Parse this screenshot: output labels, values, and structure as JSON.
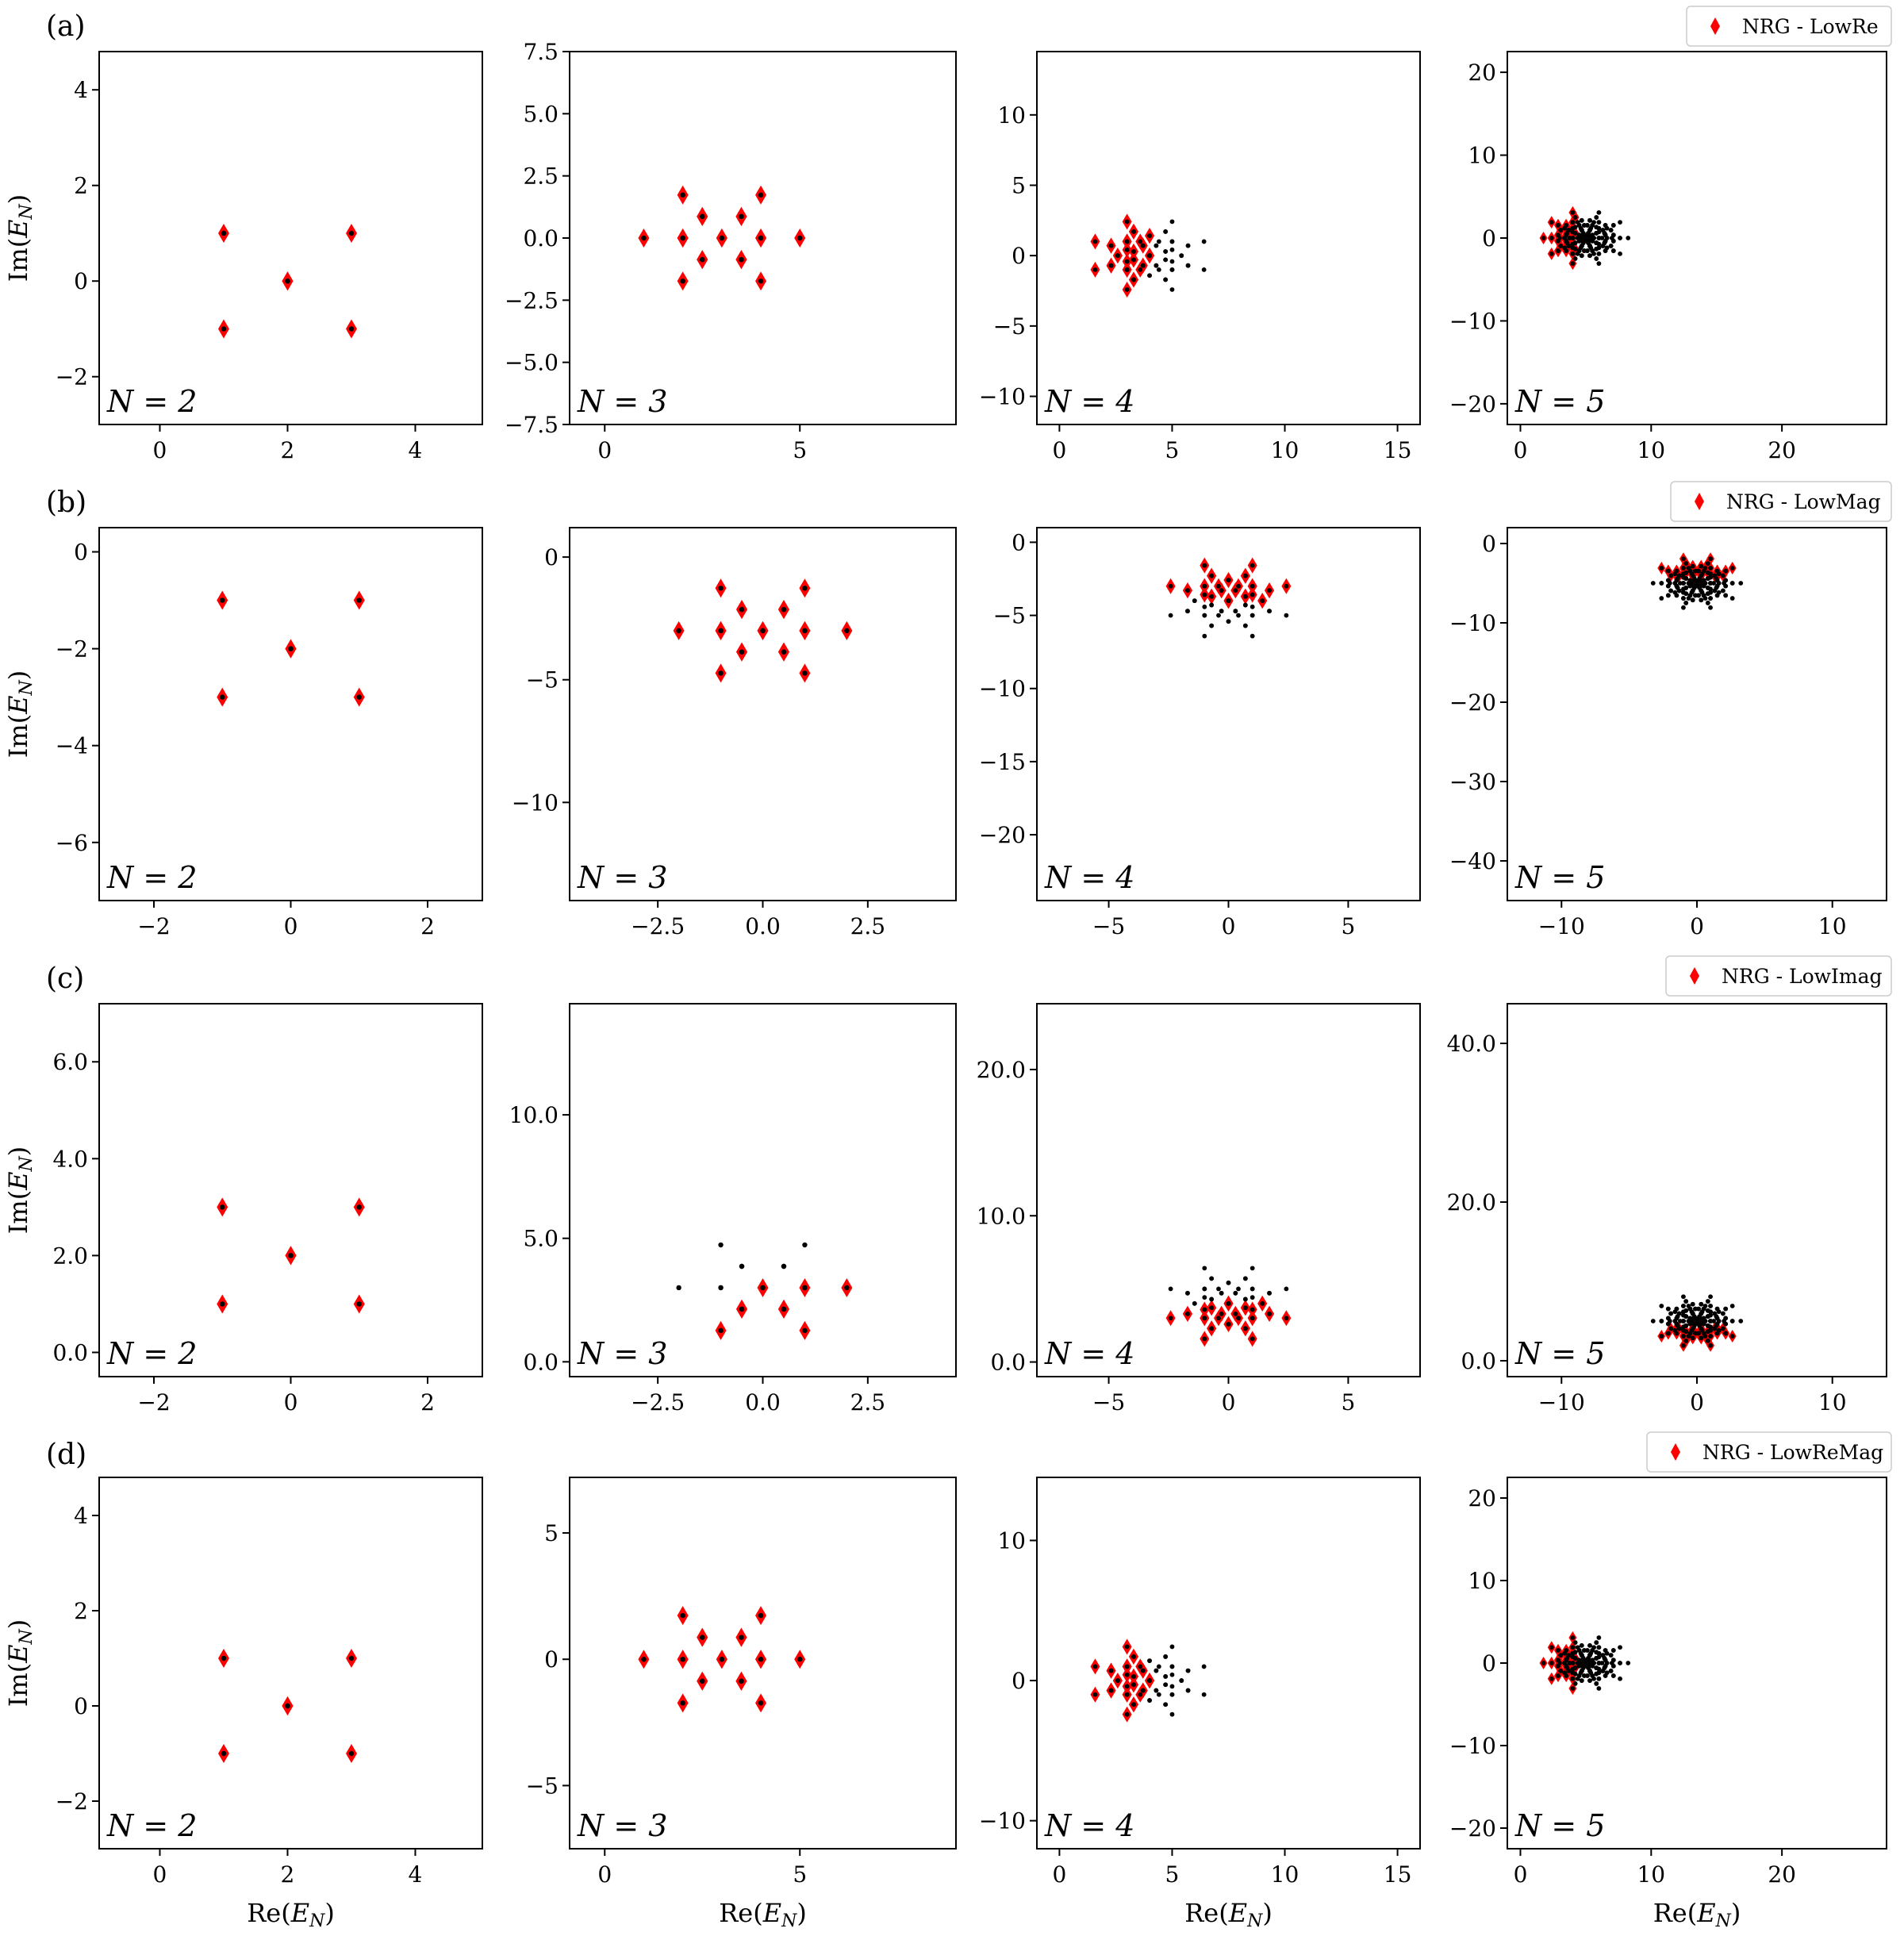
{
  "chart_data": [
    {
      "row": "(a)",
      "legend": "NRG - LowRe",
      "type": "scatter",
      "xlabel": "Re(E_N)",
      "ylabel": "Im(E_N)",
      "panels": [
        {
          "n_label": "N = 2",
          "N": 2,
          "xlim": [
            -0.95,
            5.05
          ],
          "ylim": [
            -3.0,
            4.8
          ],
          "xticks": [
            0,
            2,
            4
          ],
          "yticks": [
            -2,
            0,
            2,
            4
          ],
          "ytick_labels": [
            "−2",
            "0",
            "2",
            "4"
          ]
        },
        {
          "n_label": "N = 3",
          "N": 3,
          "xlim": [
            -0.9,
            9.0
          ],
          "ylim": [
            -7.5,
            7.5
          ],
          "xticks": [
            0,
            5
          ],
          "yticks": [
            -7.5,
            -5.0,
            -2.5,
            0.0,
            2.5,
            5.0,
            7.5
          ],
          "ytick_labels": [
            "−7.5",
            "−5.0",
            "−2.5",
            "0.0",
            "2.5",
            "5.0",
            "7.5"
          ]
        },
        {
          "n_label": "N = 4",
          "N": 4,
          "xlim": [
            -1.0,
            16.0
          ],
          "ylim": [
            -12.0,
            14.5
          ],
          "xticks": [
            0,
            5,
            10,
            15
          ],
          "yticks": [
            -10,
            -5,
            0,
            5,
            10
          ],
          "ytick_labels": [
            "−10",
            "−5",
            "0",
            "5",
            "10"
          ]
        },
        {
          "n_label": "N = 5",
          "N": 5,
          "xlim": [
            -1.0,
            28.0
          ],
          "ylim": [
            -22.5,
            22.5
          ],
          "xticks": [
            0,
            10,
            20
          ],
          "yticks": [
            -20,
            -10,
            0,
            10,
            20
          ],
          "ytick_labels": [
            "−20",
            "−10",
            "0",
            "10",
            "20"
          ]
        }
      ]
    },
    {
      "row": "(b)",
      "legend": "NRG - LowMag",
      "type": "scatter",
      "xlabel": "Re(E_N)",
      "ylabel": "Im(E_N)",
      "panels": [
        {
          "n_label": "N = 2",
          "N": 2,
          "xlim": [
            -2.8,
            2.8
          ],
          "ylim": [
            -7.2,
            0.5
          ],
          "xticks": [
            -2,
            0,
            2
          ],
          "yticks": [
            -6,
            -4,
            -2,
            0
          ],
          "ytick_labels": [
            "−6",
            "−4",
            "−2",
            "0"
          ]
        },
        {
          "n_label": "N = 3",
          "N": 3,
          "xlim": [
            -4.6,
            4.6
          ],
          "ylim": [
            -14.0,
            1.2
          ],
          "xticks": [
            -2.5,
            0.0,
            2.5
          ],
          "xtick_labels": [
            "−2.5",
            "0.0",
            "2.5"
          ],
          "yticks": [
            -10,
            -5,
            0
          ],
          "ytick_labels": [
            "−10",
            "−5",
            "0"
          ]
        },
        {
          "n_label": "N = 4",
          "N": 4,
          "xlim": [
            -8.0,
            8.0
          ],
          "ylim": [
            -24.5,
            1.0
          ],
          "xticks": [
            -5,
            0,
            5
          ],
          "yticks": [
            -20,
            -15,
            -10,
            -5,
            0
          ],
          "ytick_labels": [
            "−20",
            "−15",
            "−10",
            "−5",
            "0"
          ]
        },
        {
          "n_label": "N = 5",
          "N": 5,
          "xlim": [
            -14.0,
            14.0
          ],
          "ylim": [
            -45.0,
            2.0
          ],
          "xticks": [
            -10,
            0,
            10
          ],
          "yticks": [
            -40,
            -30,
            -20,
            -10,
            0
          ],
          "ytick_labels": [
            "−40",
            "−30",
            "−20",
            "−10",
            "0"
          ]
        }
      ]
    },
    {
      "row": "(c)",
      "legend": "NRG - LowImag",
      "type": "scatter",
      "xlabel": "Re(E_N)",
      "ylabel": "Im(E_N)",
      "panels": [
        {
          "n_label": "N = 2",
          "N": 2,
          "xlim": [
            -2.8,
            2.8
          ],
          "ylim": [
            -0.5,
            7.2
          ],
          "xticks": [
            -2,
            0,
            2
          ],
          "yticks": [
            0,
            2,
            4,
            6
          ],
          "ytick_labels": [
            "0.0",
            "2.0",
            "4.0",
            "6.0"
          ]
        },
        {
          "n_label": "N = 3",
          "N": 3,
          "xlim": [
            -4.6,
            4.6
          ],
          "ylim": [
            -0.6,
            14.5
          ],
          "xticks": [
            -2.5,
            0.0,
            2.5
          ],
          "xtick_labels": [
            "−2.5",
            "0.0",
            "2.5"
          ],
          "yticks": [
            0,
            5,
            10
          ],
          "ytick_labels": [
            "0.0",
            "5.0",
            "10.0"
          ]
        },
        {
          "n_label": "N = 4",
          "N": 4,
          "xlim": [
            -8.0,
            8.0
          ],
          "ylim": [
            -1.0,
            24.5
          ],
          "xticks": [
            -5,
            0,
            5
          ],
          "yticks": [
            0,
            10,
            20
          ],
          "ytick_labels": [
            "0.0",
            "10.0",
            "20.0"
          ]
        },
        {
          "n_label": "N = 5",
          "N": 5,
          "xlim": [
            -14.0,
            14.0
          ],
          "ylim": [
            -2.0,
            45.0
          ],
          "xticks": [
            -10,
            0,
            10
          ],
          "yticks": [
            0,
            20,
            40
          ],
          "ytick_labels": [
            "0.0",
            "20.0",
            "40.0"
          ]
        }
      ]
    },
    {
      "row": "(d)",
      "legend": "NRG - LowReMag",
      "type": "scatter",
      "xlabel": "Re(E_N)",
      "ylabel": "Im(E_N)",
      "panels": [
        {
          "n_label": "N = 2",
          "N": 2,
          "xlim": [
            -0.95,
            5.05
          ],
          "ylim": [
            -3.0,
            4.8
          ],
          "xticks": [
            0,
            2,
            4
          ],
          "yticks": [
            -2,
            0,
            2,
            4
          ],
          "ytick_labels": [
            "−2",
            "0",
            "2",
            "4"
          ]
        },
        {
          "n_label": "N = 3",
          "N": 3,
          "xlim": [
            -0.9,
            9.0
          ],
          "ylim": [
            -7.5,
            7.2
          ],
          "xticks": [
            0,
            5
          ],
          "yticks": [
            -5,
            0,
            5
          ],
          "ytick_labels": [
            "−5",
            "0",
            "5"
          ]
        },
        {
          "n_label": "N = 4",
          "N": 4,
          "xlim": [
            -1.0,
            16.0
          ],
          "ylim": [
            -12.0,
            14.5
          ],
          "xticks": [
            0,
            5,
            10,
            15
          ],
          "yticks": [
            -10,
            0,
            10
          ],
          "ytick_labels": [
            "−10",
            "0",
            "10"
          ]
        },
        {
          "n_label": "N = 5",
          "N": 5,
          "xlim": [
            -1.0,
            28.0
          ],
          "ylim": [
            -22.5,
            22.5
          ],
          "xticks": [
            0,
            10,
            20
          ],
          "yticks": [
            -20,
            -10,
            0,
            10,
            20
          ],
          "ytick_labels": [
            "−20",
            "−10",
            "0",
            "10",
            "20"
          ]
        }
      ]
    }
  ],
  "colors": {
    "points": "#000000",
    "nrg": "#ff0000"
  }
}
